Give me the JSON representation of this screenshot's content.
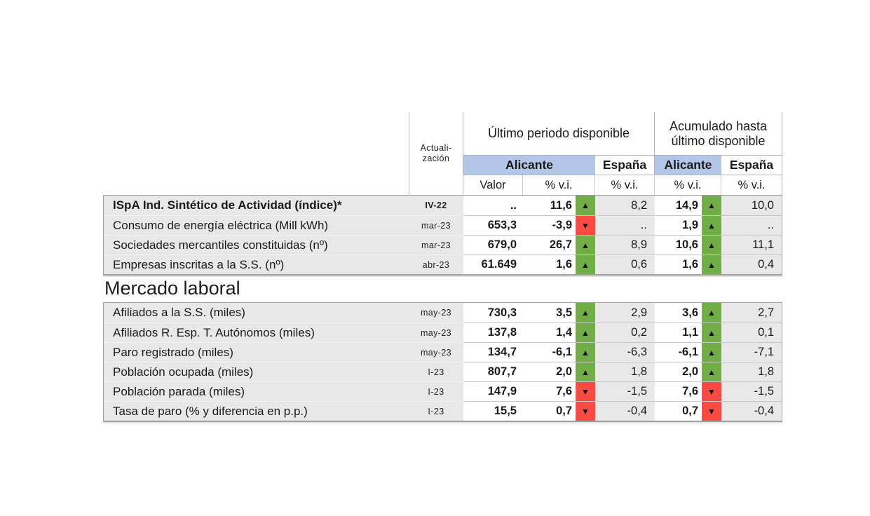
{
  "colors": {
    "header_blue": "#b4c6e7",
    "up_green": "#70ad47",
    "down_red": "#fb4a42",
    "cell_gray": "#e8e8e8",
    "grid_line": "#b5b5b5"
  },
  "header": {
    "actualizacion_line1": "Actuali-",
    "actualizacion_line2": "zación",
    "ultimo_periodo": "Último periodo disponible",
    "acumulado_line1": "Acumulado hasta",
    "acumulado_line2": "último disponible",
    "alicante": "Alicante",
    "espana": "España",
    "valor": "Valor",
    "pct_vi": "% v.i."
  },
  "sections": [
    {
      "title": "",
      "rows": [
        {
          "label": "ISpA Ind. Sintético de Actividad (índice)*",
          "bold": true,
          "date": "IV-22",
          "valor": "..",
          "vi": "11,6",
          "vi_dir": "up",
          "esp": "8,2",
          "acum_vi": "14,9",
          "acum_dir": "up",
          "acum_esp": "10,0"
        },
        {
          "label": "Consumo de energía eléctrica (Mill kWh)",
          "bold": false,
          "date": "mar-23",
          "valor": "653,3",
          "vi": "-3,9",
          "vi_dir": "down",
          "esp": "..",
          "acum_vi": "1,9",
          "acum_dir": "up",
          "acum_esp": ".."
        },
        {
          "label": "Sociedades mercantiles constituidas (nº)",
          "bold": false,
          "date": "mar-23",
          "valor": "679,0",
          "vi": "26,7",
          "vi_dir": "up",
          "esp": "8,9",
          "acum_vi": "10,6",
          "acum_dir": "up",
          "acum_esp": "11,1"
        },
        {
          "label": "Empresas inscritas a la S.S. (nº)",
          "bold": false,
          "date": "abr-23",
          "valor": "61.649",
          "vi": "1,6",
          "vi_dir": "up",
          "esp": "0,6",
          "acum_vi": "1,6",
          "acum_dir": "up",
          "acum_esp": "0,4"
        }
      ]
    },
    {
      "title": "Mercado laboral",
      "rows": [
        {
          "label": "Afiliados a la S.S. (miles)",
          "bold": false,
          "date": "may-23",
          "valor": "730,3",
          "vi": "3,5",
          "vi_dir": "up",
          "esp": "2,9",
          "acum_vi": "3,6",
          "acum_dir": "up",
          "acum_esp": "2,7"
        },
        {
          "label": "Afiliados R. Esp. T. Autónomos (miles)",
          "bold": false,
          "date": "may-23",
          "valor": "137,8",
          "vi": "1,4",
          "vi_dir": "up",
          "esp": "0,2",
          "acum_vi": "1,1",
          "acum_dir": "up",
          "acum_esp": "0,1"
        },
        {
          "label": "Paro registrado (miles)",
          "bold": false,
          "date": "may-23",
          "valor": "134,7",
          "vi": "-6,1",
          "vi_dir": "up",
          "esp": "-6,3",
          "acum_vi": "-6,1",
          "acum_dir": "up",
          "acum_esp": "-7,1"
        },
        {
          "label": "Población ocupada (miles)",
          "bold": false,
          "date": "I-23",
          "valor": "807,7",
          "vi": "2,0",
          "vi_dir": "up",
          "esp": "1,8",
          "acum_vi": "2,0",
          "acum_dir": "up",
          "acum_esp": "1,8"
        },
        {
          "label": "Población parada (miles)",
          "bold": false,
          "date": "I-23",
          "valor": "147,9",
          "vi": "7,6",
          "vi_dir": "down",
          "esp": "-1,5",
          "acum_vi": "7,6",
          "acum_dir": "down",
          "acum_esp": "-1,5"
        },
        {
          "label": "Tasa de paro (% y diferencia en p.p.)",
          "bold": false,
          "date": "I-23",
          "valor": "15,5",
          "vi": "0,7",
          "vi_dir": "down",
          "esp": "-0,4",
          "acum_vi": "0,7",
          "acum_dir": "down",
          "acum_esp": "-0,4"
        }
      ]
    }
  ]
}
